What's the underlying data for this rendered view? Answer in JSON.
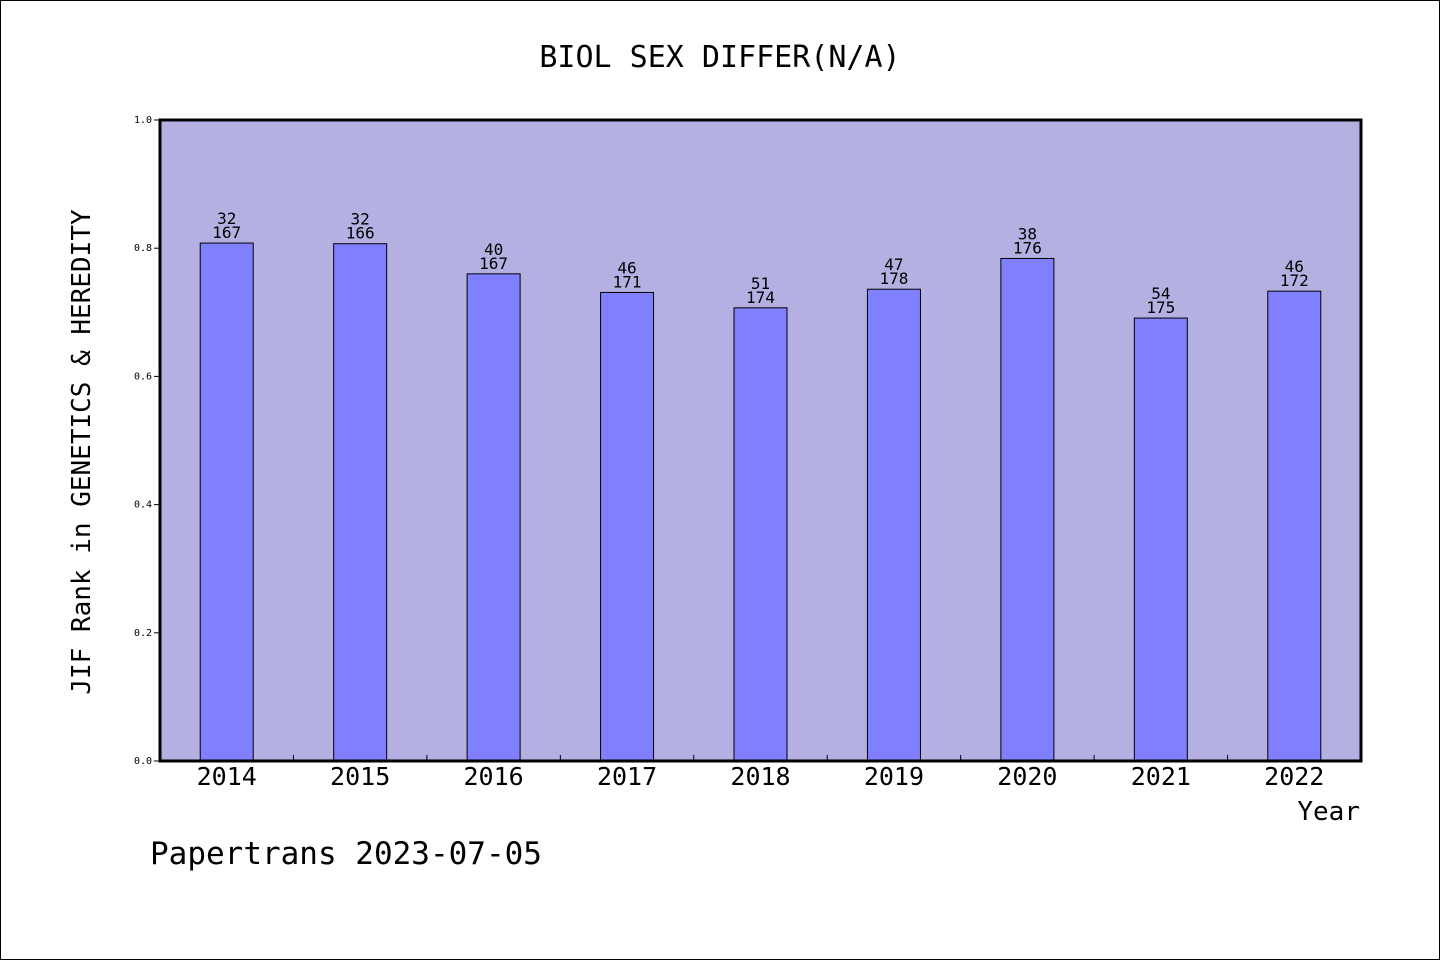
{
  "chart_data": {
    "type": "bar",
    "title": "BIOL SEX DIFFER(N/A)",
    "xlabel": "Year",
    "ylabel": "JIF Rank in GENETICS & HEREDITY",
    "ylim": [
      0.0,
      1.0
    ],
    "yticks": [
      "0.0",
      "0.2",
      "0.4",
      "0.6",
      "0.8",
      "1.0"
    ],
    "categories": [
      "2014",
      "2015",
      "2016",
      "2017",
      "2018",
      "2019",
      "2020",
      "2021",
      "2022"
    ],
    "values": [
      0.808,
      0.807,
      0.76,
      0.731,
      0.707,
      0.736,
      0.784,
      0.691,
      0.733
    ],
    "rank_labels": [
      "32",
      "32",
      "40",
      "46",
      "51",
      "47",
      "38",
      "54",
      "46"
    ],
    "total_labels": [
      "167",
      "166",
      "167",
      "171",
      "174",
      "178",
      "176",
      "175",
      "172"
    ],
    "grid": false,
    "colors": {
      "plot_background": "#b5b0e2",
      "bar_fill": "#8080ff",
      "bar_stroke": "#000000"
    }
  },
  "footer": {
    "credit": "Papertrans 2023-07-05"
  }
}
